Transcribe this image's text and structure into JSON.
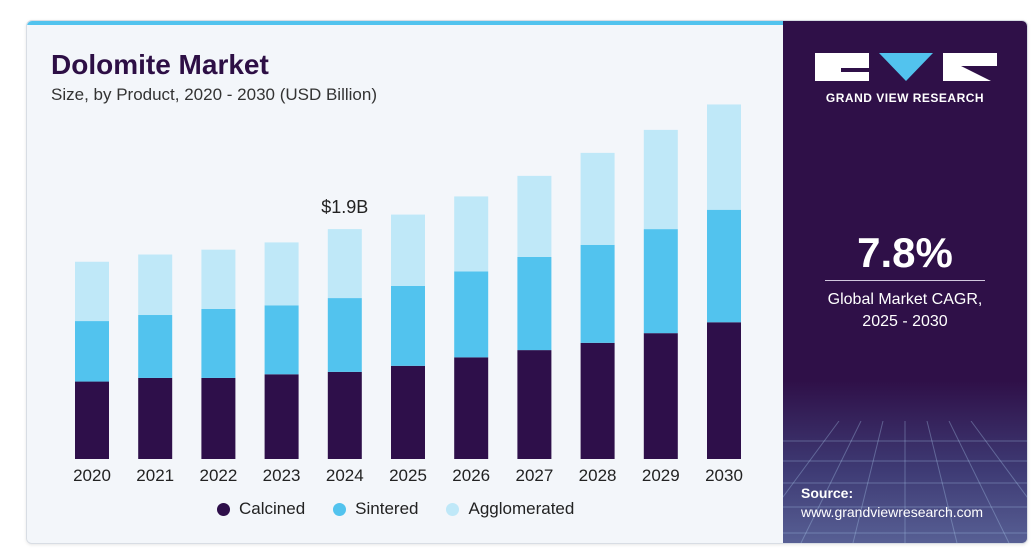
{
  "header": {
    "title": "Dolomite Market",
    "subtitle": "Size, by Product, 2020 - 2030 (USD Billion)"
  },
  "callout": {
    "label": "$1.9B",
    "year": "2024"
  },
  "legend": {
    "items": [
      {
        "label": "Calcined",
        "color": "#2e0f4a"
      },
      {
        "label": "Sintered",
        "color": "#52c3ee"
      },
      {
        "label": "Agglomerated",
        "color": "#bfe8f8"
      }
    ]
  },
  "brand": {
    "name": "GRAND VIEW RESEARCH",
    "logo_icon": "gvr-logo-icon"
  },
  "cagr": {
    "value": "7.8%",
    "label_line1": "Global Market CAGR,",
    "label_line2": "2025 - 2030"
  },
  "source": {
    "title": "Source:",
    "url": "www.grandviewresearch.com"
  },
  "colors": {
    "brand_dark": "#2f1048",
    "accent_cyan": "#52c3ee"
  },
  "chart_data": {
    "type": "bar",
    "stacked": true,
    "categories": [
      "2020",
      "2021",
      "2022",
      "2023",
      "2024",
      "2025",
      "2026",
      "2027",
      "2028",
      "2029",
      "2030"
    ],
    "series": [
      {
        "name": "Calcined",
        "color": "#2e0f4a",
        "values": [
          0.64,
          0.67,
          0.67,
          0.7,
          0.72,
          0.77,
          0.84,
          0.9,
          0.96,
          1.04,
          1.13
        ]
      },
      {
        "name": "Sintered",
        "color": "#52c3ee",
        "values": [
          0.5,
          0.52,
          0.57,
          0.57,
          0.61,
          0.66,
          0.71,
          0.77,
          0.81,
          0.86,
          0.93
        ]
      },
      {
        "name": "Agglomerated",
        "color": "#bfe8f8",
        "values": [
          0.49,
          0.5,
          0.49,
          0.52,
          0.57,
          0.59,
          0.62,
          0.67,
          0.76,
          0.82,
          0.87
        ]
      }
    ],
    "title": "Dolomite Market",
    "subtitle": "Size, by Product, 2020 - 2030 (USD Billion)",
    "annotations": [
      {
        "category": "2024",
        "text": "$1.9B"
      }
    ],
    "ylim": [
      0,
      3.0
    ],
    "grid": false,
    "legend_position": "bottom"
  }
}
